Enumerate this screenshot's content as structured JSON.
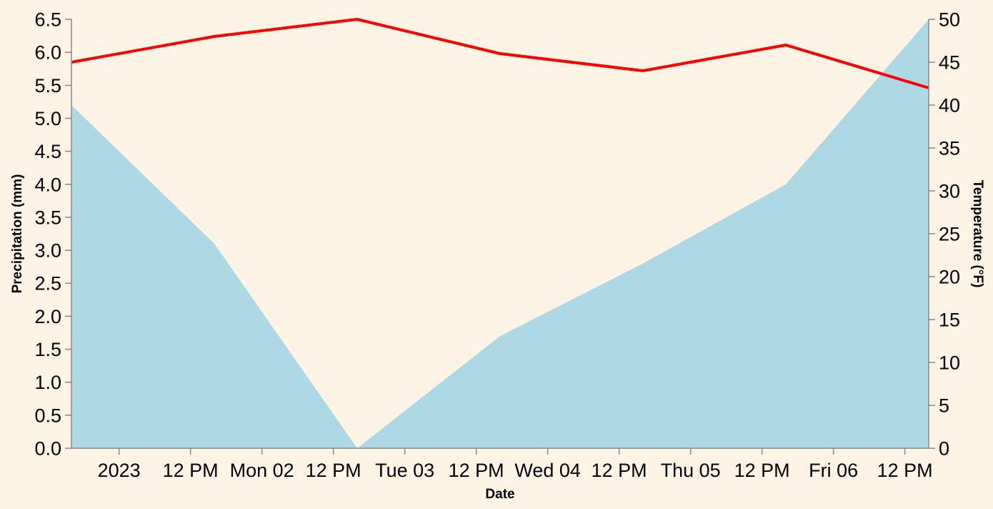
{
  "chart_data": {
    "type": "area+line",
    "x_dates": [
      "2023-01-01T00:00",
      "2023-01-02T00:00",
      "2023-01-03T00:00",
      "2023-01-04T00:00",
      "2023-01-05T00:00",
      "2023-01-06T00:00",
      "2023-01-07T00:00"
    ],
    "x_tick_labels": [
      "2023",
      "12 PM",
      "Mon 02",
      "12 PM",
      "Tue 03",
      "12 PM",
      "Wed 04",
      "12 PM",
      "Thu 05",
      "12 PM",
      "Fri 06",
      "12 PM"
    ],
    "series": [
      {
        "name": "Precipitation (mm)",
        "mark": "area",
        "axis": "left",
        "color": "#add8e6",
        "values": [
          5.2,
          3.1,
          0.0,
          1.7,
          2.8,
          4.0,
          6.5
        ]
      },
      {
        "name": "Temperature (°F)",
        "mark": "line",
        "axis": "right",
        "color": "#ff0000",
        "values": [
          45,
          48,
          50,
          46,
          44,
          47,
          42
        ]
      }
    ],
    "xlabel": "Date",
    "ylabel_left": "Precipitation (mm)",
    "ylabel_right": "Temperature (°F)",
    "ylim_left": [
      0,
      6.5
    ],
    "ylim_right": [
      0,
      50
    ],
    "yticks_left": [
      "0.0",
      "0.5",
      "1.0",
      "1.5",
      "2.0",
      "2.5",
      "3.0",
      "3.5",
      "4.0",
      "4.5",
      "5.0",
      "5.5",
      "6.0",
      "6.5"
    ],
    "yticks_right": [
      "0",
      "5",
      "10",
      "15",
      "20",
      "25",
      "30",
      "35",
      "40",
      "45",
      "50"
    ],
    "grid": false,
    "background": "#fdf4e5"
  }
}
